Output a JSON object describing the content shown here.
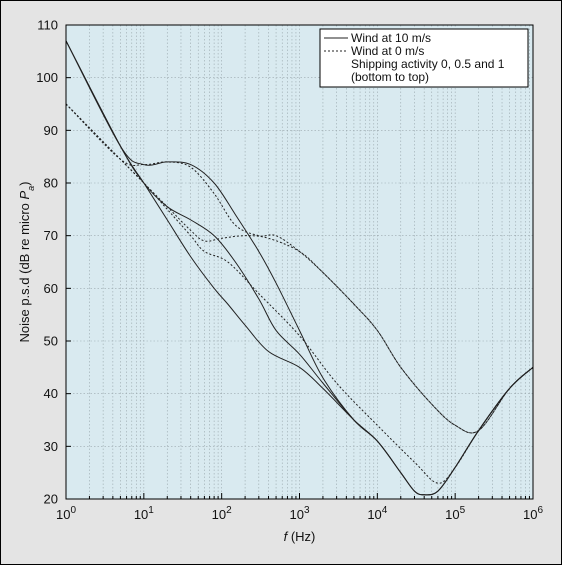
{
  "chart_data": {
    "type": "line",
    "title": "",
    "xlabel_italic": "f",
    "xlabel_rest": " (Hz)",
    "ylabel_main": "Noise p.s.d (dB re micro ",
    "ylabel_p": "P",
    "ylabel_sub": "a",
    "ylabel_close": ")",
    "x_scale": "log",
    "xlim": [
      1,
      1000000
    ],
    "ylim": [
      20,
      110
    ],
    "grid": true,
    "x_ticks": [
      {
        "value": 1,
        "base": "10",
        "exp": "0"
      },
      {
        "value": 10,
        "base": "10",
        "exp": "1"
      },
      {
        "value": 100,
        "base": "10",
        "exp": "2"
      },
      {
        "value": 1000,
        "base": "10",
        "exp": "3"
      },
      {
        "value": 10000,
        "base": "10",
        "exp": "4"
      },
      {
        "value": 100000,
        "base": "10",
        "exp": "5"
      },
      {
        "value": 1000000,
        "base": "10",
        "exp": "6"
      }
    ],
    "y_ticks": [
      20,
      30,
      40,
      50,
      60,
      70,
      80,
      90,
      100,
      110
    ],
    "legend": {
      "position": "top-right",
      "entries": [
        {
          "label": "Wind at 10 m/s",
          "style": "solid"
        },
        {
          "label": "Wind at 0 m/s",
          "style": "dotted"
        },
        {
          "label": "Shipping activity 0, 0.5 and 1",
          "style": "none"
        },
        {
          "label": "(bottom to top)",
          "style": "none"
        }
      ]
    },
    "colors": {
      "plot_background": "#d9eaf0",
      "frame_background": "#e4e4e4",
      "line": "#222222",
      "grid": "#9aa8ad"
    },
    "series": [
      {
        "style": "solid",
        "points": [
          [
            1,
            107
          ],
          [
            5,
            87
          ],
          [
            10,
            80
          ],
          [
            20,
            73
          ],
          [
            40,
            66
          ],
          [
            80,
            60
          ],
          [
            120,
            57
          ],
          [
            200,
            53
          ],
          [
            400,
            48
          ],
          [
            1000,
            45
          ],
          [
            2000,
            41
          ],
          [
            5000,
            35
          ],
          [
            10000,
            31
          ],
          [
            20000,
            25
          ],
          [
            30000,
            21.5
          ],
          [
            40000,
            20.8
          ],
          [
            60000,
            21.5
          ],
          [
            100000,
            26
          ],
          [
            200000,
            33
          ],
          [
            500000,
            41
          ],
          [
            1000000,
            45
          ]
        ]
      },
      {
        "style": "solid",
        "points": [
          [
            1,
            107
          ],
          [
            5,
            87
          ],
          [
            10,
            80
          ],
          [
            20,
            75.5
          ],
          [
            40,
            73
          ],
          [
            80,
            70
          ],
          [
            150,
            65
          ],
          [
            300,
            58
          ],
          [
            500,
            52
          ],
          [
            1000,
            47.5
          ],
          [
            2000,
            42
          ],
          [
            5000,
            35
          ],
          [
            10000,
            31
          ],
          [
            20000,
            25
          ],
          [
            30000,
            21.5
          ],
          [
            40000,
            20.8
          ],
          [
            60000,
            21.5
          ],
          [
            100000,
            26
          ],
          [
            200000,
            33
          ],
          [
            500000,
            41
          ],
          [
            1000000,
            45
          ]
        ]
      },
      {
        "style": "solid",
        "points": [
          [
            1,
            107
          ],
          [
            5,
            87
          ],
          [
            10,
            83.5
          ],
          [
            20,
            84
          ],
          [
            40,
            83.5
          ],
          [
            80,
            80
          ],
          [
            150,
            74
          ],
          [
            300,
            67
          ],
          [
            500,
            61
          ],
          [
            1000,
            52
          ],
          [
            2000,
            43
          ],
          [
            5000,
            35
          ],
          [
            10000,
            31
          ],
          [
            20000,
            25
          ],
          [
            30000,
            21.5
          ],
          [
            40000,
            20.8
          ],
          [
            60000,
            21.5
          ],
          [
            100000,
            26
          ],
          [
            200000,
            33
          ],
          [
            500000,
            41
          ],
          [
            1000000,
            45
          ]
        ]
      },
      {
        "style": "dotted",
        "points": [
          [
            1,
            95
          ],
          [
            5,
            84.5
          ],
          [
            10,
            80
          ],
          [
            20,
            75
          ],
          [
            40,
            70
          ],
          [
            60,
            67
          ],
          [
            120,
            65
          ],
          [
            300,
            59
          ],
          [
            1000,
            51
          ],
          [
            3000,
            42
          ],
          [
            10000,
            34
          ],
          [
            30000,
            27
          ],
          [
            60000,
            23
          ],
          [
            100000,
            26
          ],
          [
            200000,
            33
          ],
          [
            500000,
            41
          ],
          [
            1000000,
            45
          ]
        ]
      },
      {
        "style": "dotted",
        "points": [
          [
            1,
            95
          ],
          [
            5,
            84.5
          ],
          [
            10,
            80
          ],
          [
            20,
            75.5
          ],
          [
            40,
            71
          ],
          [
            60,
            69
          ],
          [
            100,
            69.5
          ],
          [
            200,
            70
          ],
          [
            400,
            69.5
          ],
          [
            1000,
            67
          ],
          [
            2000,
            63
          ],
          [
            5000,
            57
          ],
          [
            10000,
            52
          ],
          [
            20000,
            45
          ],
          [
            50000,
            38
          ],
          [
            100000,
            34
          ],
          [
            200000,
            33
          ],
          [
            500000,
            41
          ],
          [
            1000000,
            45
          ]
        ]
      },
      {
        "style": "dotted",
        "points": [
          [
            1,
            95
          ],
          [
            5,
            84.5
          ],
          [
            10,
            83.5
          ],
          [
            20,
            84
          ],
          [
            40,
            83
          ],
          [
            80,
            78
          ],
          [
            150,
            72
          ],
          [
            300,
            70
          ],
          [
            500,
            70
          ],
          [
            1000,
            67
          ],
          [
            2000,
            63
          ],
          [
            5000,
            57
          ],
          [
            10000,
            52
          ],
          [
            20000,
            45
          ],
          [
            50000,
            38
          ],
          [
            100000,
            34
          ],
          [
            200000,
            33
          ],
          [
            500000,
            41
          ],
          [
            1000000,
            45
          ]
        ]
      }
    ]
  }
}
